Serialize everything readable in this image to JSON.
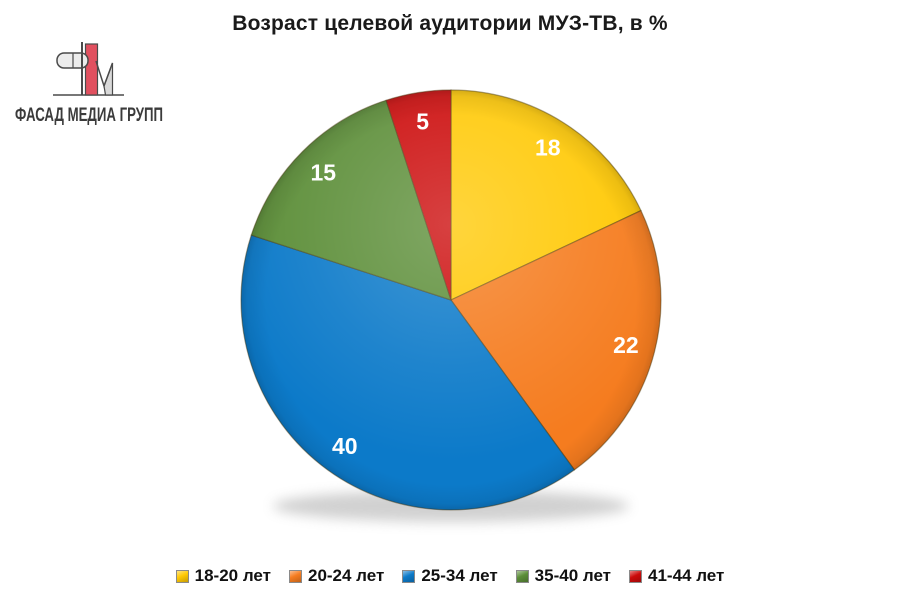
{
  "title": "Возраст целевой аудитории МУЗ-ТВ, в %",
  "logo": {
    "text": "ФАСАД МЕДИА ГРУПП"
  },
  "chart_data": {
    "type": "pie",
    "title": "Возраст целевой аудитории МУЗ-ТВ, в %",
    "labels": [
      "18-20 лет",
      "20-24 лет",
      "25-34 лет",
      "35-40 лет",
      "41-44 лет"
    ],
    "values": [
      18,
      22,
      40,
      15,
      5
    ],
    "colors": [
      "#FFC905",
      "#F57C1F",
      "#0C7AC9",
      "#5C8E38",
      "#CC0B0B"
    ],
    "unit": "%",
    "start_angle_deg": 0,
    "direction": "clockwise",
    "data_labels": "values-inside",
    "legend_position": "bottom"
  }
}
